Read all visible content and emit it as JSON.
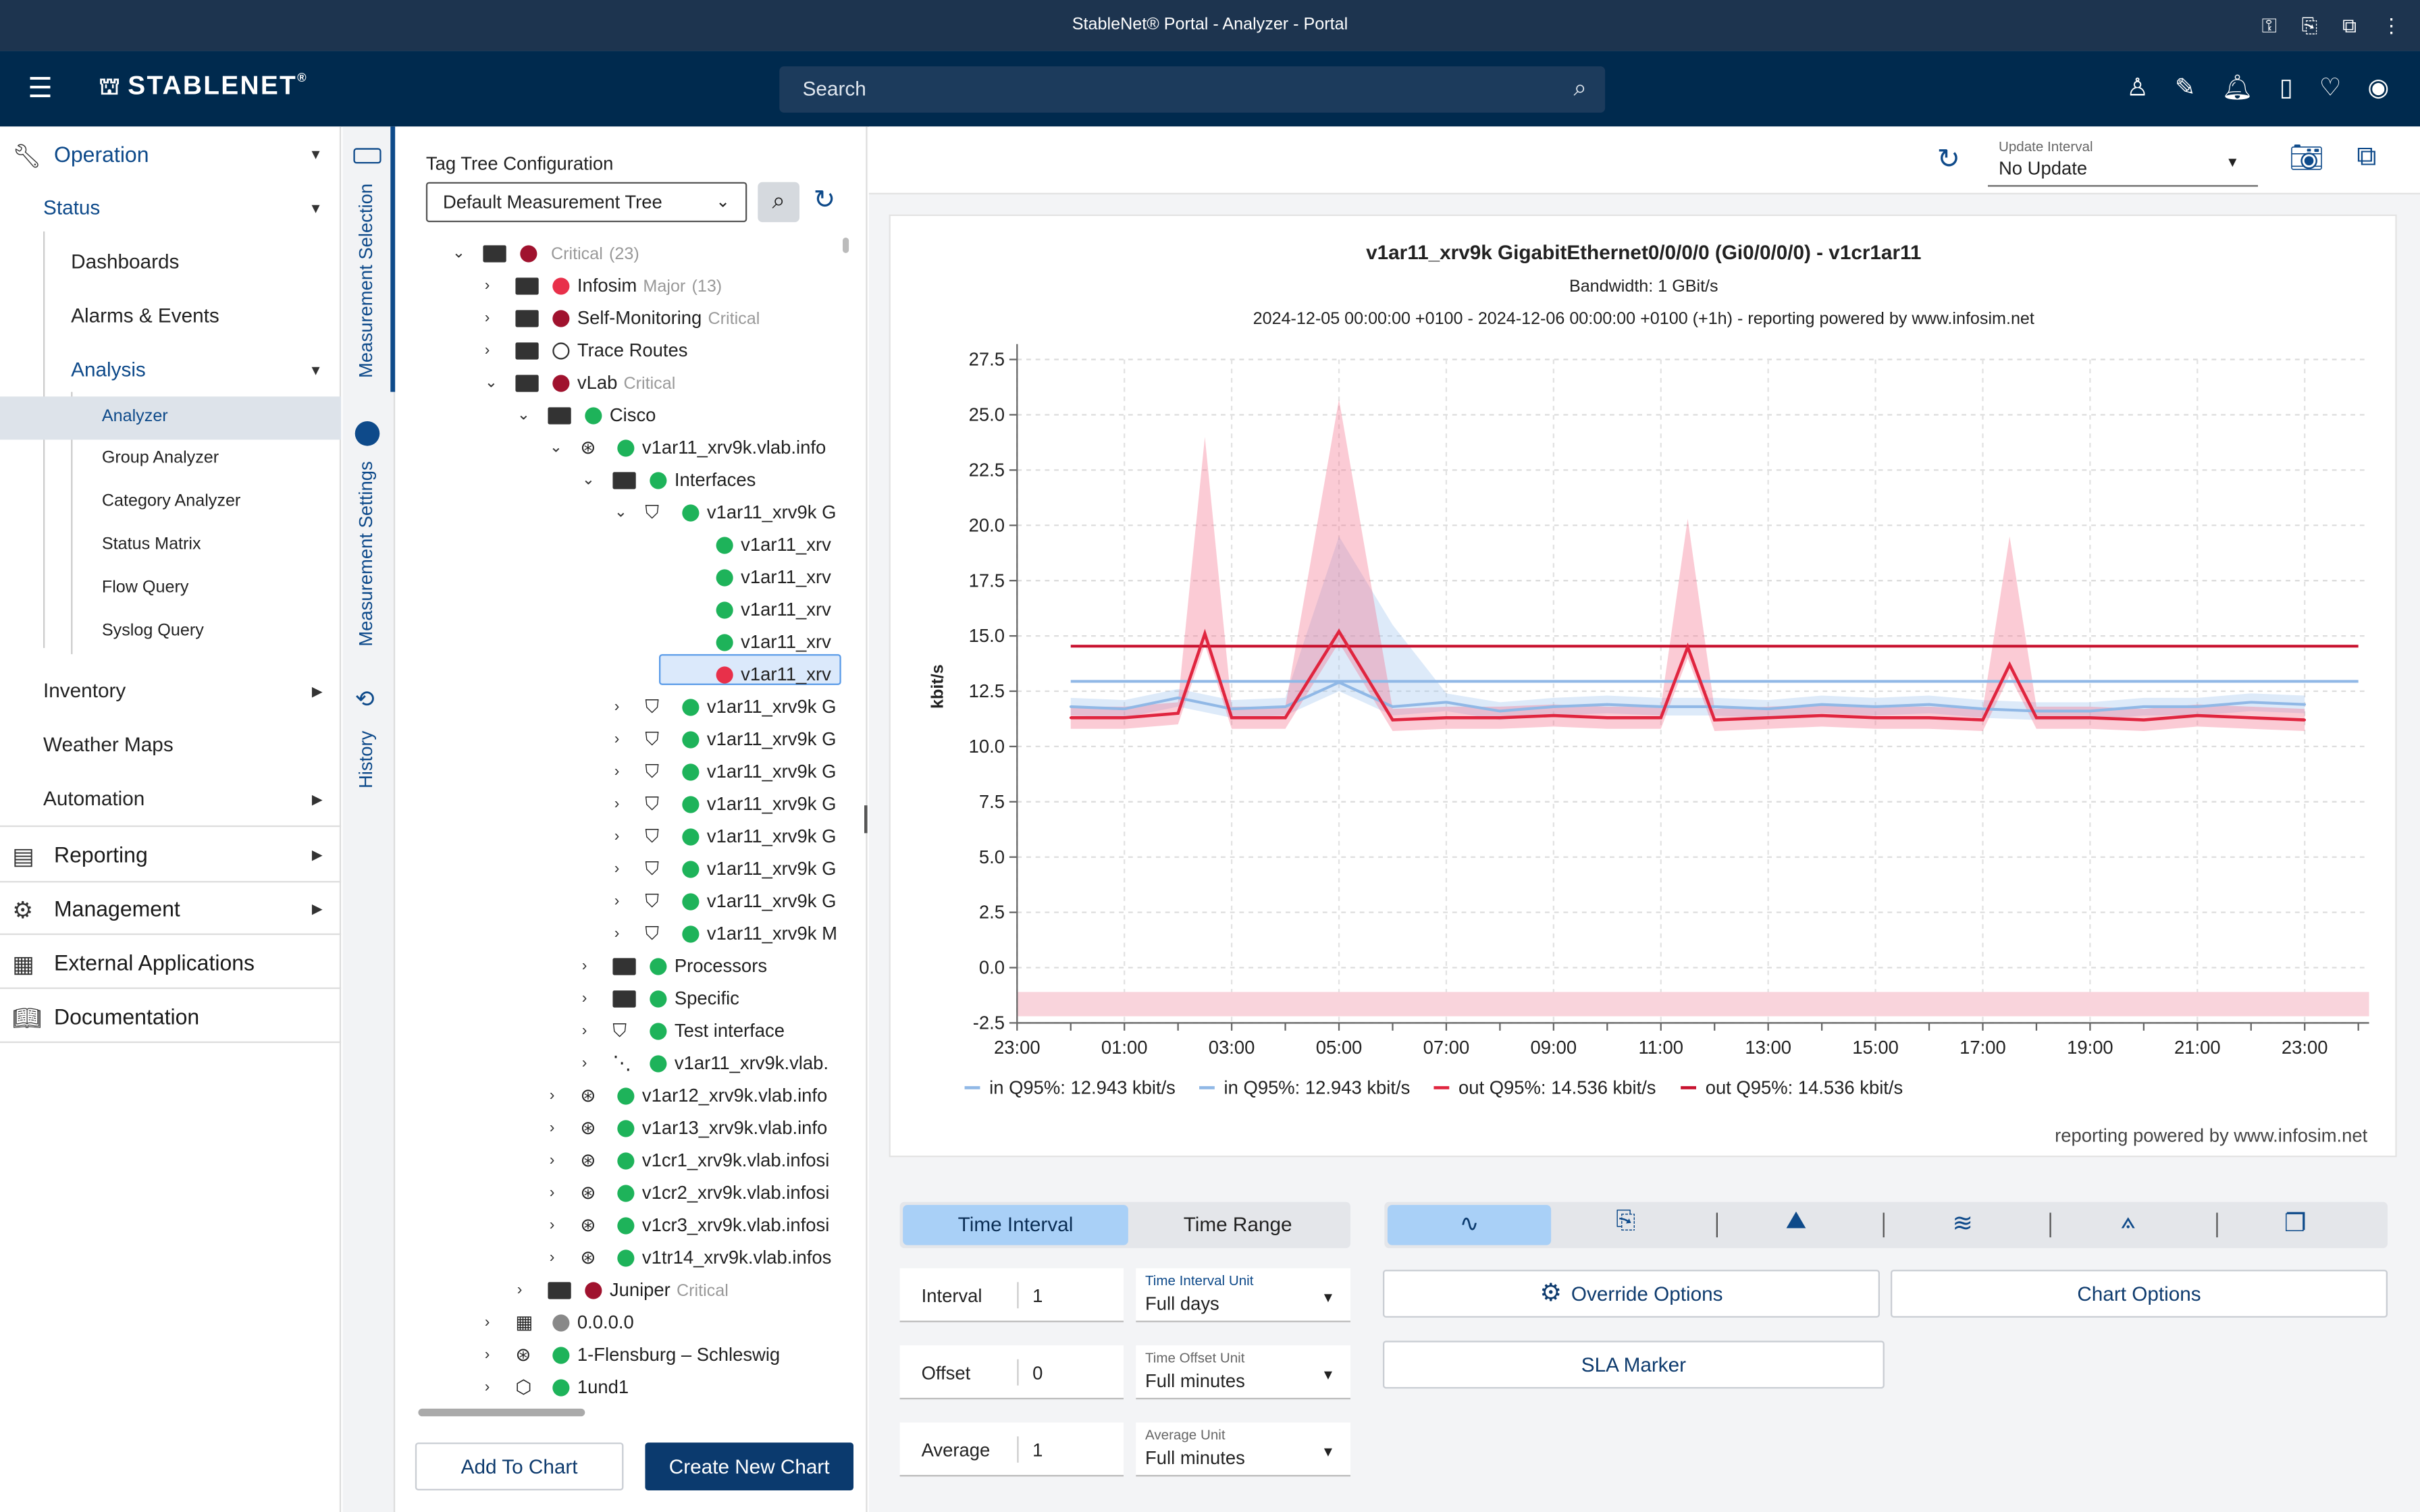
{
  "window": {
    "title": "StableNet® Portal - Analyzer - Portal"
  },
  "header": {
    "logo": "STABLENET",
    "search_placeholder": "Search"
  },
  "nav": {
    "operation": "Operation",
    "status": "Status",
    "dashboards": "Dashboards",
    "alarms": "Alarms & Events",
    "analysis": "Analysis",
    "analyzer": "Analyzer",
    "group_analyzer": "Group Analyzer",
    "category_analyzer": "Category Analyzer",
    "status_matrix": "Status Matrix",
    "flow_query": "Flow Query",
    "syslog_query": "Syslog Query",
    "inventory": "Inventory",
    "weather_maps": "Weather Maps",
    "automation": "Automation",
    "reporting": "Reporting",
    "management": "Management",
    "external": "External Applications",
    "documentation": "Documentation"
  },
  "vtabs": {
    "measurement_selection": "Measurement Selection",
    "measurement_settings": "Measurement Settings",
    "history": "History"
  },
  "tree": {
    "config_title": "Tag Tree Configuration",
    "select_value": "Default Measurement Tree",
    "rows": [
      {
        "label": "",
        "sub": "Critical",
        "count": "(23)"
      },
      {
        "label": "Infosim",
        "sub": "Major",
        "count": "(13)"
      },
      {
        "label": "Self-Monitoring",
        "sub": "Critical"
      },
      {
        "label": "Trace Routes"
      },
      {
        "label": "vLab",
        "sub": "Critical"
      },
      {
        "label": "Cisco"
      },
      {
        "label": "v1ar11_xrv9k.vlab.info"
      },
      {
        "label": "Interfaces"
      },
      {
        "label": "v1ar11_xrv9k G"
      },
      {
        "label": "v1ar11_xrv"
      },
      {
        "label": "v1ar11_xrv"
      },
      {
        "label": "v1ar11_xrv"
      },
      {
        "label": "v1ar11_xrv"
      },
      {
        "label": "v1ar11_xrv"
      },
      {
        "label": "v1ar11_xrv9k G"
      },
      {
        "label": "v1ar11_xrv9k G"
      },
      {
        "label": "v1ar11_xrv9k G"
      },
      {
        "label": "v1ar11_xrv9k G"
      },
      {
        "label": "v1ar11_xrv9k G"
      },
      {
        "label": "v1ar11_xrv9k G"
      },
      {
        "label": "v1ar11_xrv9k G"
      },
      {
        "label": "v1ar11_xrv9k M"
      },
      {
        "label": "Processors"
      },
      {
        "label": "Specific"
      },
      {
        "label": "Test interface"
      },
      {
        "label": "v1ar11_xrv9k.vlab."
      },
      {
        "label": "v1ar12_xrv9k.vlab.info"
      },
      {
        "label": "v1ar13_xrv9k.vlab.info"
      },
      {
        "label": "v1cr1_xrv9k.vlab.infosi"
      },
      {
        "label": "v1cr2_xrv9k.vlab.infosi"
      },
      {
        "label": "v1cr3_xrv9k.vlab.infosi"
      },
      {
        "label": "v1tr14_xrv9k.vlab.infos"
      },
      {
        "label": "Juniper",
        "sub": "Critical"
      },
      {
        "label": "0.0.0.0"
      },
      {
        "label": "1-Flensburg – Schleswig"
      },
      {
        "label": "1und1"
      }
    ],
    "add_to_chart": "Add To Chart",
    "create_new_chart": "Create New Chart"
  },
  "topbar": {
    "update_label": "Update Interval",
    "update_value": "No Update"
  },
  "chart_data": {
    "type": "line",
    "title": "v1ar11_xrv9k GigabitEthernet0/0/0/0 (Gi0/0/0/0) - v1cr1ar11",
    "subtitle": "Bandwidth: 1 GBit/s",
    "subtitle2": "2024-12-05 00:00:00 +0100 - 2024-12-06 00:00:00 +0100 (+1h) - reporting powered by www.infosim.net",
    "ylabel": "kbit/s",
    "ylim": [
      -2.5,
      27.5
    ],
    "yticks": [
      "27.5",
      "25.0",
      "22.5",
      "20.0",
      "17.5",
      "15.0",
      "12.5",
      "10.0",
      "7.5",
      "5.0",
      "2.5",
      "0.0",
      "-2.5"
    ],
    "xticks": [
      "23:00",
      "01:00",
      "03:00",
      "05:00",
      "07:00",
      "09:00",
      "11:00",
      "13:00",
      "15:00",
      "17:00",
      "19:00",
      "21:00",
      "23:00"
    ],
    "xlim": [
      -1,
      24.2
    ],
    "series": [
      {
        "name": "in Q95%: 12.943 kbit/s",
        "color": "#90b8e6",
        "x": [
          0,
          1,
          2,
          3,
          4,
          5,
          6,
          7,
          8,
          9,
          10,
          11,
          12,
          13,
          14,
          15,
          16,
          17,
          18,
          19,
          20,
          21,
          22,
          23
        ],
        "values": [
          11.8,
          11.7,
          12.2,
          11.7,
          11.8,
          12.9,
          11.8,
          12.0,
          11.6,
          11.8,
          11.9,
          11.8,
          11.8,
          11.7,
          11.9,
          11.8,
          11.9,
          11.7,
          11.6,
          11.6,
          11.8,
          11.8,
          12.0,
          11.9
        ]
      },
      {
        "name": "out Q95%: 14.536 kbit/s",
        "color": "#e0253f",
        "x": [
          0,
          1,
          2,
          2.5,
          3,
          4,
          5,
          6,
          7,
          8,
          9,
          10,
          11,
          11.5,
          12,
          13,
          14,
          15,
          16,
          17,
          17.5,
          18,
          19,
          20,
          21,
          22,
          23
        ],
        "values": [
          11.3,
          11.3,
          11.5,
          15.1,
          11.3,
          11.3,
          15.2,
          11.2,
          11.3,
          11.3,
          11.4,
          11.3,
          11.3,
          14.5,
          11.2,
          11.3,
          11.4,
          11.3,
          11.3,
          11.2,
          13.7,
          11.3,
          11.3,
          11.2,
          11.4,
          11.3,
          11.2
        ]
      }
    ],
    "q95": [
      {
        "name": "in Q95%: 12.943 kbit/s",
        "value": 12.943,
        "color": "#90b8e6"
      },
      {
        "name": "out Q95%: 14.536 kbit/s",
        "value": 14.536,
        "color": "#c8122f"
      }
    ],
    "legend": [
      "in Q95%: 12.943 kbit/s",
      "in Q95%: 12.943 kbit/s",
      "out Q95%: 14.536 kbit/s",
      "out Q95%: 14.536 kbit/s"
    ],
    "footer": "reporting powered by www.infosim.net"
  },
  "bottom": {
    "tab_interval": "Time Interval",
    "tab_range": "Time Range",
    "interval_label": "Interval",
    "interval_value": "1",
    "interval_unit_label": "Time Interval Unit",
    "interval_unit": "Full days",
    "offset_label": "Offset",
    "offset_value": "0",
    "offset_unit_label": "Time Offset Unit",
    "offset_unit": "Full minutes",
    "average_label": "Average",
    "average_value": "1",
    "average_unit_label": "Average Unit",
    "average_unit": "Full minutes",
    "override": "Override Options",
    "chart_options": "Chart Options",
    "sla": "SLA Marker"
  }
}
